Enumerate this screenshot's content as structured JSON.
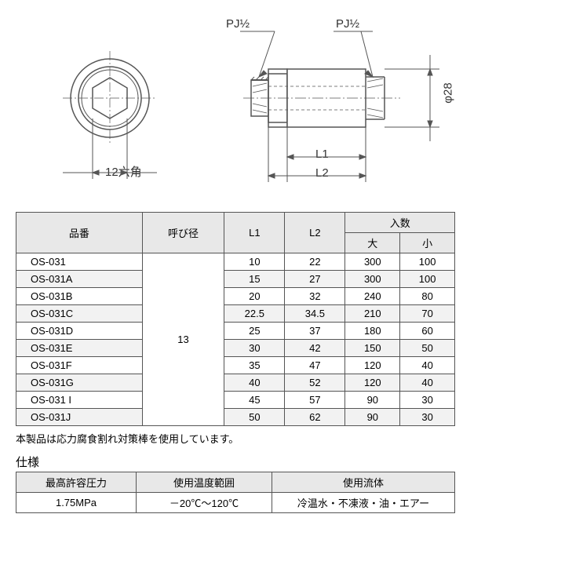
{
  "diagram": {
    "label_pj_left": "PJ½",
    "label_pj_right": "PJ½",
    "label_hex": "12六角",
    "label_l1": "L1",
    "label_l2": "L2",
    "label_phi": "φ28",
    "colors": {
      "stroke": "#555555",
      "thin": "#666666",
      "fill_light": "#ffffff"
    }
  },
  "parts_table": {
    "headers": {
      "part_no": "品番",
      "nominal": "呼び径",
      "l1": "L1",
      "l2": "L2",
      "qty": "入数",
      "qty_large": "大",
      "qty_small": "小"
    },
    "nominal_value": "13",
    "rows": [
      {
        "pn": "OS-031",
        "l1": "10",
        "l2": "22",
        "qa": "300",
        "qb": "100"
      },
      {
        "pn": "OS-031A",
        "l1": "15",
        "l2": "27",
        "qa": "300",
        "qb": "100"
      },
      {
        "pn": "OS-031B",
        "l1": "20",
        "l2": "32",
        "qa": "240",
        "qb": "80"
      },
      {
        "pn": "OS-031C",
        "l1": "22.5",
        "l2": "34.5",
        "qa": "210",
        "qb": "70"
      },
      {
        "pn": "OS-031D",
        "l1": "25",
        "l2": "37",
        "qa": "180",
        "qb": "60"
      },
      {
        "pn": "OS-031E",
        "l1": "30",
        "l2": "42",
        "qa": "150",
        "qb": "50"
      },
      {
        "pn": "OS-031F",
        "l1": "35",
        "l2": "47",
        "qa": "120",
        "qb": "40"
      },
      {
        "pn": "OS-031G",
        "l1": "40",
        "l2": "52",
        "qa": "120",
        "qb": "40"
      },
      {
        "pn": "OS-031 I",
        "l1": "45",
        "l2": "57",
        "qa": "90",
        "qb": "30"
      },
      {
        "pn": "OS-031J",
        "l1": "50",
        "l2": "62",
        "qa": "90",
        "qb": "30"
      }
    ]
  },
  "note": "本製品は応力腐食割れ対策棒を使用しています。",
  "spec": {
    "title": "仕様",
    "headers": {
      "pressure": "最高許容圧力",
      "temp": "使用温度範囲",
      "fluid": "使用流体"
    },
    "values": {
      "pressure": "1.75MPa",
      "temp": "－20℃～120℃",
      "fluid": "冷温水・不凍液・油・エアー"
    }
  }
}
